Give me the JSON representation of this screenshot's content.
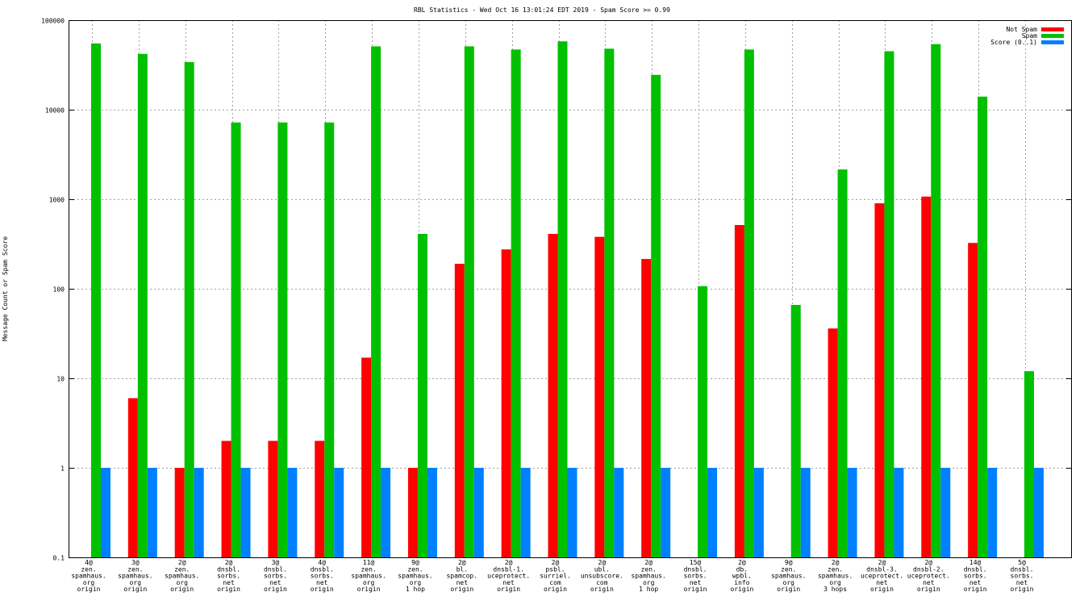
{
  "chart_data": {
    "type": "bar",
    "title": "RBL Statistics - Wed Oct 16 13:01:24 EDT 2019 - Spam Score >= 0.99",
    "ylabel": "Message Count or Spam Score",
    "xlabel": "",
    "yscale": "log",
    "ylim": [
      0.1,
      100000
    ],
    "yticks": [
      "0.1",
      "1",
      "10",
      "100",
      "1000",
      "10000",
      "100000"
    ],
    "grid": true,
    "legend_position": "top-right",
    "categories": [
      [
        "4@",
        "zen.",
        "spamhaus.",
        "org",
        "origin"
      ],
      [
        "3@",
        "zen.",
        "spamhaus.",
        "org",
        "origin"
      ],
      [
        "2@",
        "zen.",
        "spamhaus.",
        "org",
        "origin"
      ],
      [
        "2@",
        "dnsbl.",
        "sorbs.",
        "net",
        "origin"
      ],
      [
        "3@",
        "dnsbl.",
        "sorbs.",
        "net",
        "origin"
      ],
      [
        "4@",
        "dnsbl.",
        "sorbs.",
        "net",
        "origin"
      ],
      [
        "11@",
        "zen.",
        "spamhaus.",
        "org",
        "origin"
      ],
      [
        "9@",
        "zen.",
        "spamhaus.",
        "org",
        "1 hop"
      ],
      [
        "2@",
        "bl.",
        "spamcop.",
        "net",
        "origin"
      ],
      [
        "2@",
        "dnsbl-1.",
        "uceprotect.",
        "net",
        "origin"
      ],
      [
        "2@",
        "psbl.",
        "surriel.",
        "com",
        "origin"
      ],
      [
        "2@",
        "ubl.",
        "unsubscore.",
        "com",
        "origin"
      ],
      [
        "2@",
        "zen.",
        "spamhaus.",
        "org",
        "1 hop"
      ],
      [
        "15@",
        "dnsbl.",
        "sorbs.",
        "net",
        "origin"
      ],
      [
        "2@",
        "db.",
        "wpbl.",
        "info",
        "origin"
      ],
      [
        "9@",
        "zen.",
        "spamhaus.",
        "org",
        "origin"
      ],
      [
        "2@",
        "zen.",
        "spamhaus.",
        "org",
        "3 hops"
      ],
      [
        "2@",
        "dnsbl-3.",
        "uceprotect.",
        "net",
        "origin"
      ],
      [
        "2@",
        "dnsbl-2.",
        "uceprotect.",
        "net",
        "origin"
      ],
      [
        "14@",
        "dnsbl.",
        "sorbs.",
        "net",
        "origin"
      ],
      [
        "5@",
        "dnsbl.",
        "sorbs.",
        "net",
        "origin"
      ]
    ],
    "series": [
      {
        "name": "Not Spam",
        "color": "#ff0000",
        "values": [
          null,
          6,
          1,
          2,
          2,
          2,
          17,
          1,
          190,
          275,
          410,
          380,
          215,
          null,
          515,
          null,
          36,
          900,
          1070,
          325,
          null
        ]
      },
      {
        "name": "Spam",
        "color": "#00c000",
        "values": [
          55000,
          42000,
          34000,
          7200,
          7200,
          7200,
          51000,
          410,
          51000,
          47000,
          58000,
          48000,
          24500,
          107,
          47000,
          66,
          2150,
          45000,
          54000,
          14000,
          12
        ]
      },
      {
        "name": "Score (0..1)",
        "color": "#0080ff",
        "values": [
          1,
          1,
          1,
          1,
          1,
          1,
          1,
          1,
          1,
          1,
          1,
          1,
          1,
          1,
          1,
          1,
          1,
          1,
          1,
          1,
          1
        ]
      }
    ]
  }
}
